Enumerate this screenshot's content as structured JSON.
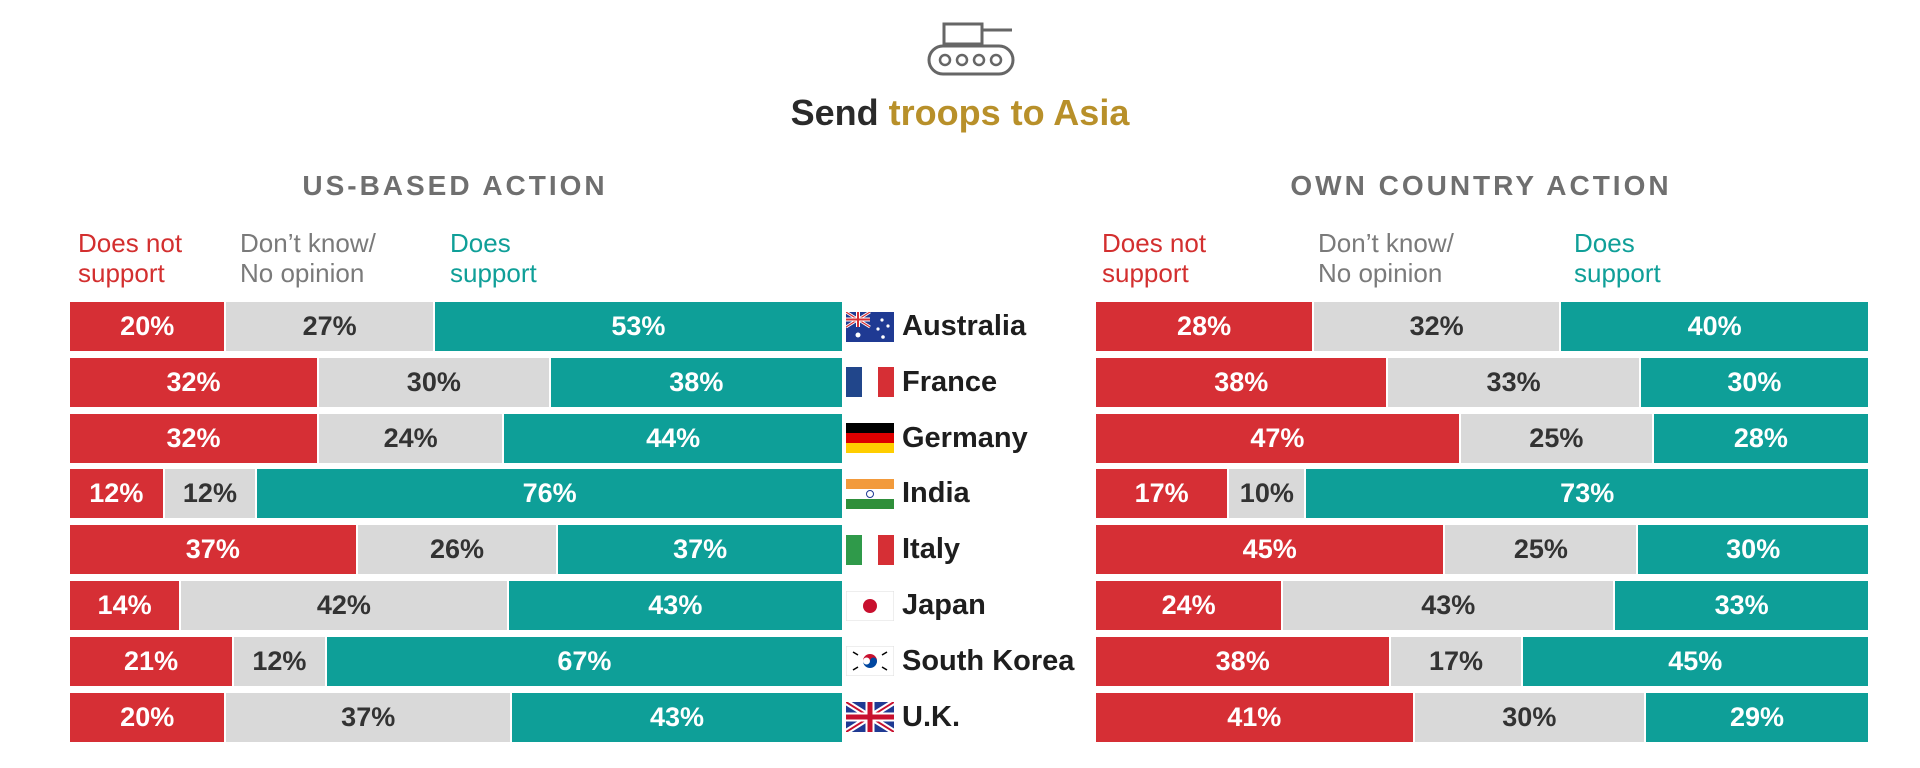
{
  "title": {
    "prefix": "Send",
    "highlight": "troops to Asia"
  },
  "panels": {
    "left": {
      "title": "US-BASED ACTION",
      "legend": {
        "not_support": "Does not support",
        "dont_know": "Don’t know/ No opinion",
        "support": "Does support"
      }
    },
    "right": {
      "title": "OWN COUNTRY ACTION",
      "legend": {
        "not_support": "Does not support",
        "dont_know": "Don’t know/ No opinion",
        "support": "Does support"
      }
    }
  },
  "colors": {
    "not_support": "#d62f35",
    "dont_know": "#d9d9d9",
    "support": "#0e9f98",
    "accent": "#b8902a"
  },
  "chart_data": [
    {
      "type": "bar",
      "stacked": true,
      "orientation": "horizontal",
      "title": "US-BASED ACTION",
      "categories": [
        "Australia",
        "France",
        "Germany",
        "India",
        "Italy",
        "Japan",
        "South Korea",
        "U.K."
      ],
      "series": [
        {
          "name": "Does not support",
          "values": [
            20,
            32,
            32,
            12,
            37,
            14,
            21,
            20
          ]
        },
        {
          "name": "Don’t know/ No opinion",
          "values": [
            27,
            30,
            24,
            12,
            26,
            42,
            12,
            37
          ]
        },
        {
          "name": "Does support",
          "values": [
            53,
            38,
            44,
            76,
            37,
            43,
            67,
            43
          ]
        }
      ],
      "xlim": [
        0,
        100
      ]
    },
    {
      "type": "bar",
      "stacked": true,
      "orientation": "horizontal",
      "title": "OWN COUNTRY ACTION",
      "categories": [
        "Australia",
        "France",
        "Germany",
        "India",
        "Italy",
        "Japan",
        "South Korea",
        "U.K."
      ],
      "series": [
        {
          "name": "Does not support",
          "values": [
            28,
            38,
            47,
            17,
            45,
            24,
            38,
            41
          ]
        },
        {
          "name": "Don’t know/ No opinion",
          "values": [
            32,
            33,
            25,
            10,
            25,
            43,
            17,
            30
          ]
        },
        {
          "name": "Does support",
          "values": [
            40,
            30,
            28,
            73,
            30,
            33,
            45,
            29
          ]
        }
      ],
      "xlim": [
        0,
        100
      ]
    }
  ],
  "flags": [
    "australia-flag",
    "france-flag",
    "germany-flag",
    "india-flag",
    "italy-flag",
    "japan-flag",
    "south-korea-flag",
    "uk-flag"
  ]
}
